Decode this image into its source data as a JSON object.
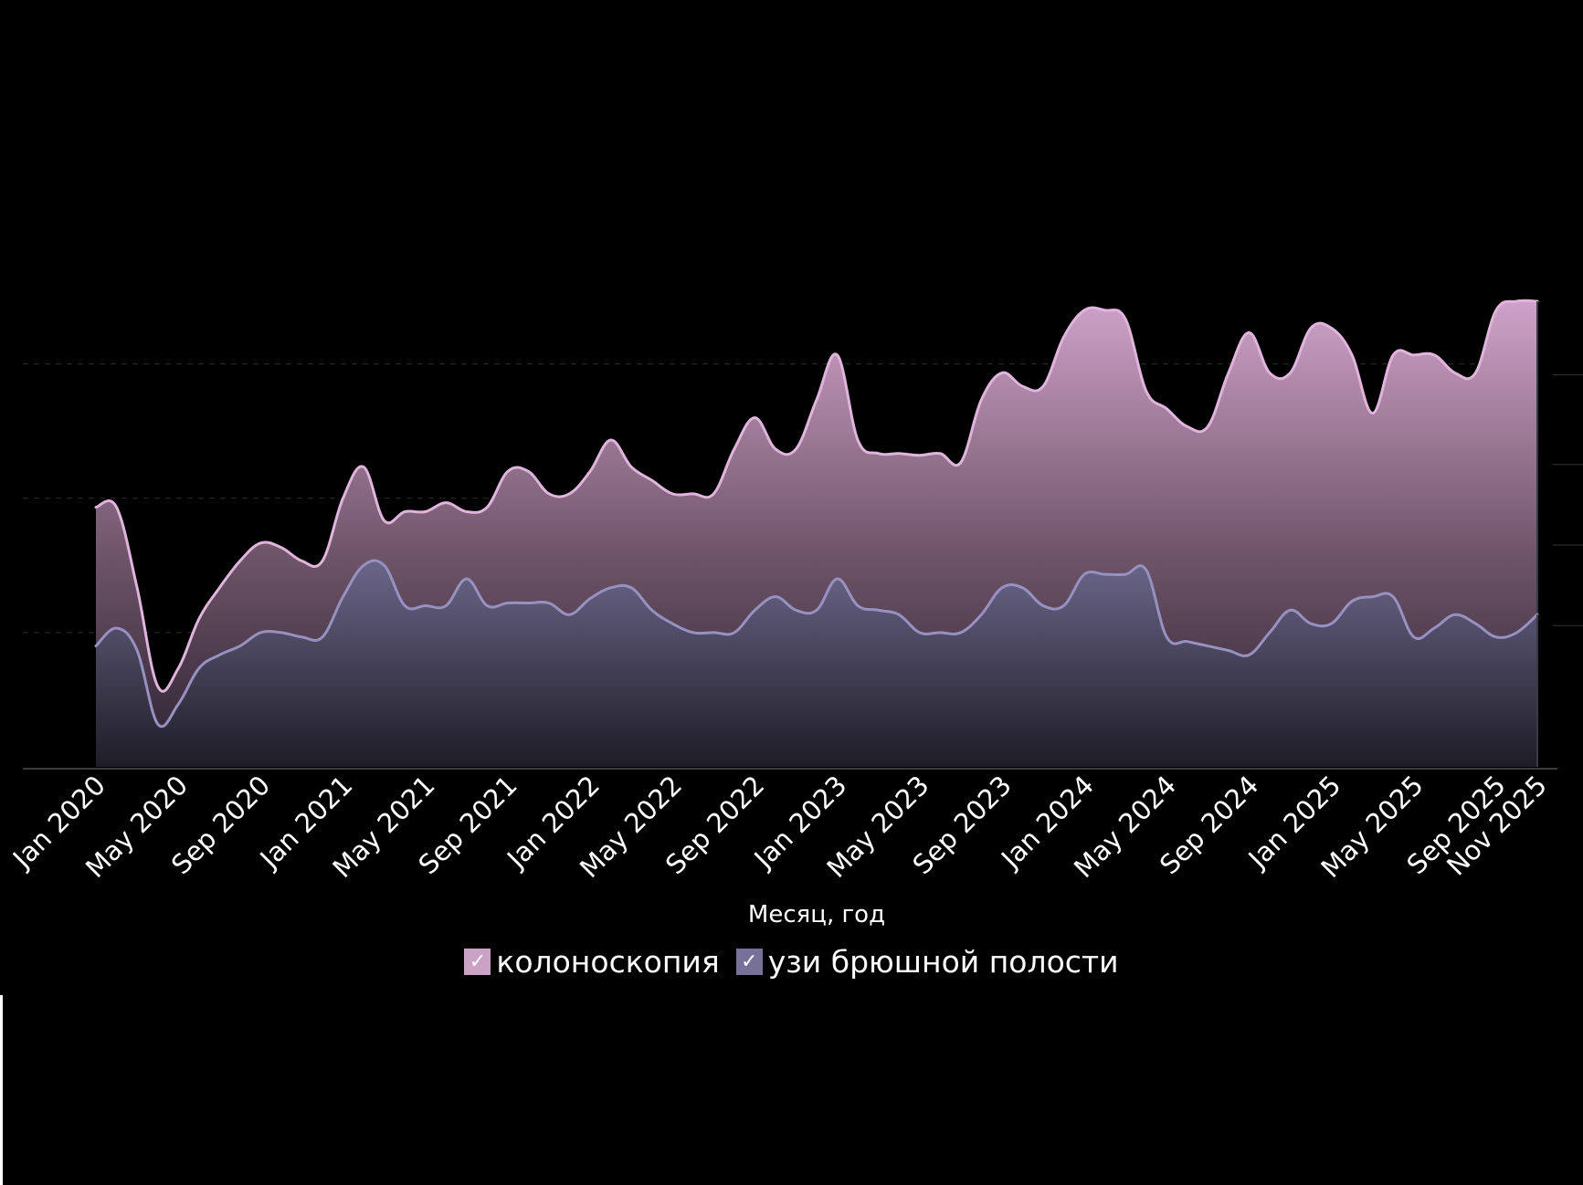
{
  "chart_data": {
    "type": "area",
    "title": "",
    "xlabel": "Месяц, год",
    "ylabel": "",
    "ylim": [
      0,
      520
    ],
    "grid": true,
    "legend_position": "bottom-center",
    "x": [
      "Jan 2020",
      "Feb 2020",
      "Mar 2020",
      "Apr 2020",
      "May 2020",
      "Jun 2020",
      "Jul 2020",
      "Aug 2020",
      "Sep 2020",
      "Oct 2020",
      "Nov 2020",
      "Dec 2020",
      "Jan 2021",
      "Feb 2021",
      "Mar 2021",
      "Apr 2021",
      "May 2021",
      "Jun 2021",
      "Jul 2021",
      "Aug 2021",
      "Sep 2021",
      "Oct 2021",
      "Nov 2021",
      "Dec 2021",
      "Jan 2022",
      "Feb 2022",
      "Mar 2022",
      "Apr 2022",
      "May 2022",
      "Jun 2022",
      "Jul 2022",
      "Aug 2022",
      "Sep 2022",
      "Oct 2022",
      "Nov 2022",
      "Dec 2022",
      "Jan 2023",
      "Feb 2023",
      "Mar 2023",
      "Apr 2023",
      "May 2023",
      "Jun 2023",
      "Jul 2023",
      "Aug 2023",
      "Sep 2023",
      "Oct 2023",
      "Nov 2023",
      "Dec 2023",
      "Jan 2024",
      "Feb 2024",
      "Mar 2024",
      "Apr 2024",
      "May 2024",
      "Jun 2024",
      "Jul 2024",
      "Aug 2024",
      "Sep 2024",
      "Oct 2024",
      "Nov 2024",
      "Dec 2024",
      "Jan 2025",
      "Feb 2025",
      "Mar 2025",
      "Apr 2025",
      "May 2025",
      "Jun 2025",
      "Jul 2025",
      "Aug 2025",
      "Sep 2025",
      "Oct 2025",
      "Nov 2025"
    ],
    "tick_labels": [
      "Jan 2020",
      "May 2020",
      "Sep 2020",
      "Jan 2021",
      "May 2021",
      "Sep 2021",
      "Jan 2022",
      "May 2022",
      "Sep 2022",
      "Jan 2023",
      "May 2023",
      "Sep 2023",
      "Jan 2024",
      "May 2024",
      "Sep 2024",
      "Jan 2025",
      "May 2025",
      "Sep 2025",
      "Nov 2025"
    ],
    "tick_indices": [
      0,
      4,
      8,
      12,
      16,
      20,
      24,
      28,
      32,
      36,
      40,
      44,
      48,
      52,
      56,
      60,
      64,
      68,
      70
    ],
    "series": [
      {
        "name": "колоноскопия",
        "color": "#e0b4dc",
        "values": [
          290,
          290,
          200,
          90,
          110,
          165,
          200,
          230,
          250,
          245,
          230,
          230,
          300,
          335,
          275,
          285,
          285,
          295,
          285,
          290,
          330,
          330,
          305,
          305,
          330,
          365,
          335,
          320,
          305,
          305,
          305,
          355,
          390,
          355,
          355,
          410,
          460,
          365,
          350,
          350,
          348,
          350,
          340,
          410,
          440,
          425,
          425,
          480,
          510,
          510,
          500,
          420,
          400,
          380,
          380,
          440,
          485,
          440,
          440,
          490,
          490,
          460,
          395,
          460,
          460,
          460,
          440,
          440,
          510,
          520,
          520
        ]
      },
      {
        "name": "узи брюшной полости",
        "color": "#9791c2",
        "values": [
          135,
          155,
          130,
          48,
          70,
          110,
          125,
          135,
          150,
          150,
          145,
          145,
          190,
          225,
          225,
          180,
          180,
          180,
          210,
          180,
          183,
          183,
          183,
          170,
          188,
          200,
          200,
          175,
          160,
          150,
          150,
          150,
          175,
          190,
          175,
          175,
          210,
          180,
          175,
          170,
          150,
          150,
          150,
          170,
          200,
          200,
          180,
          180,
          215,
          215,
          215,
          220,
          145,
          140,
          135,
          130,
          125,
          150,
          175,
          160,
          160,
          185,
          190,
          190,
          145,
          155,
          170,
          160,
          145,
          150,
          170
        ]
      }
    ]
  },
  "legend": {
    "items": [
      {
        "label": "колоноскопия",
        "check": "✓",
        "color": "#e0b4dc",
        "swatch": "#c9a2c6"
      },
      {
        "label": "узи брюшной полости",
        "check": "✓",
        "color": "#9791c2",
        "swatch": "#77719a"
      }
    ]
  },
  "icons": {
    "legend_check": "check-icon"
  }
}
